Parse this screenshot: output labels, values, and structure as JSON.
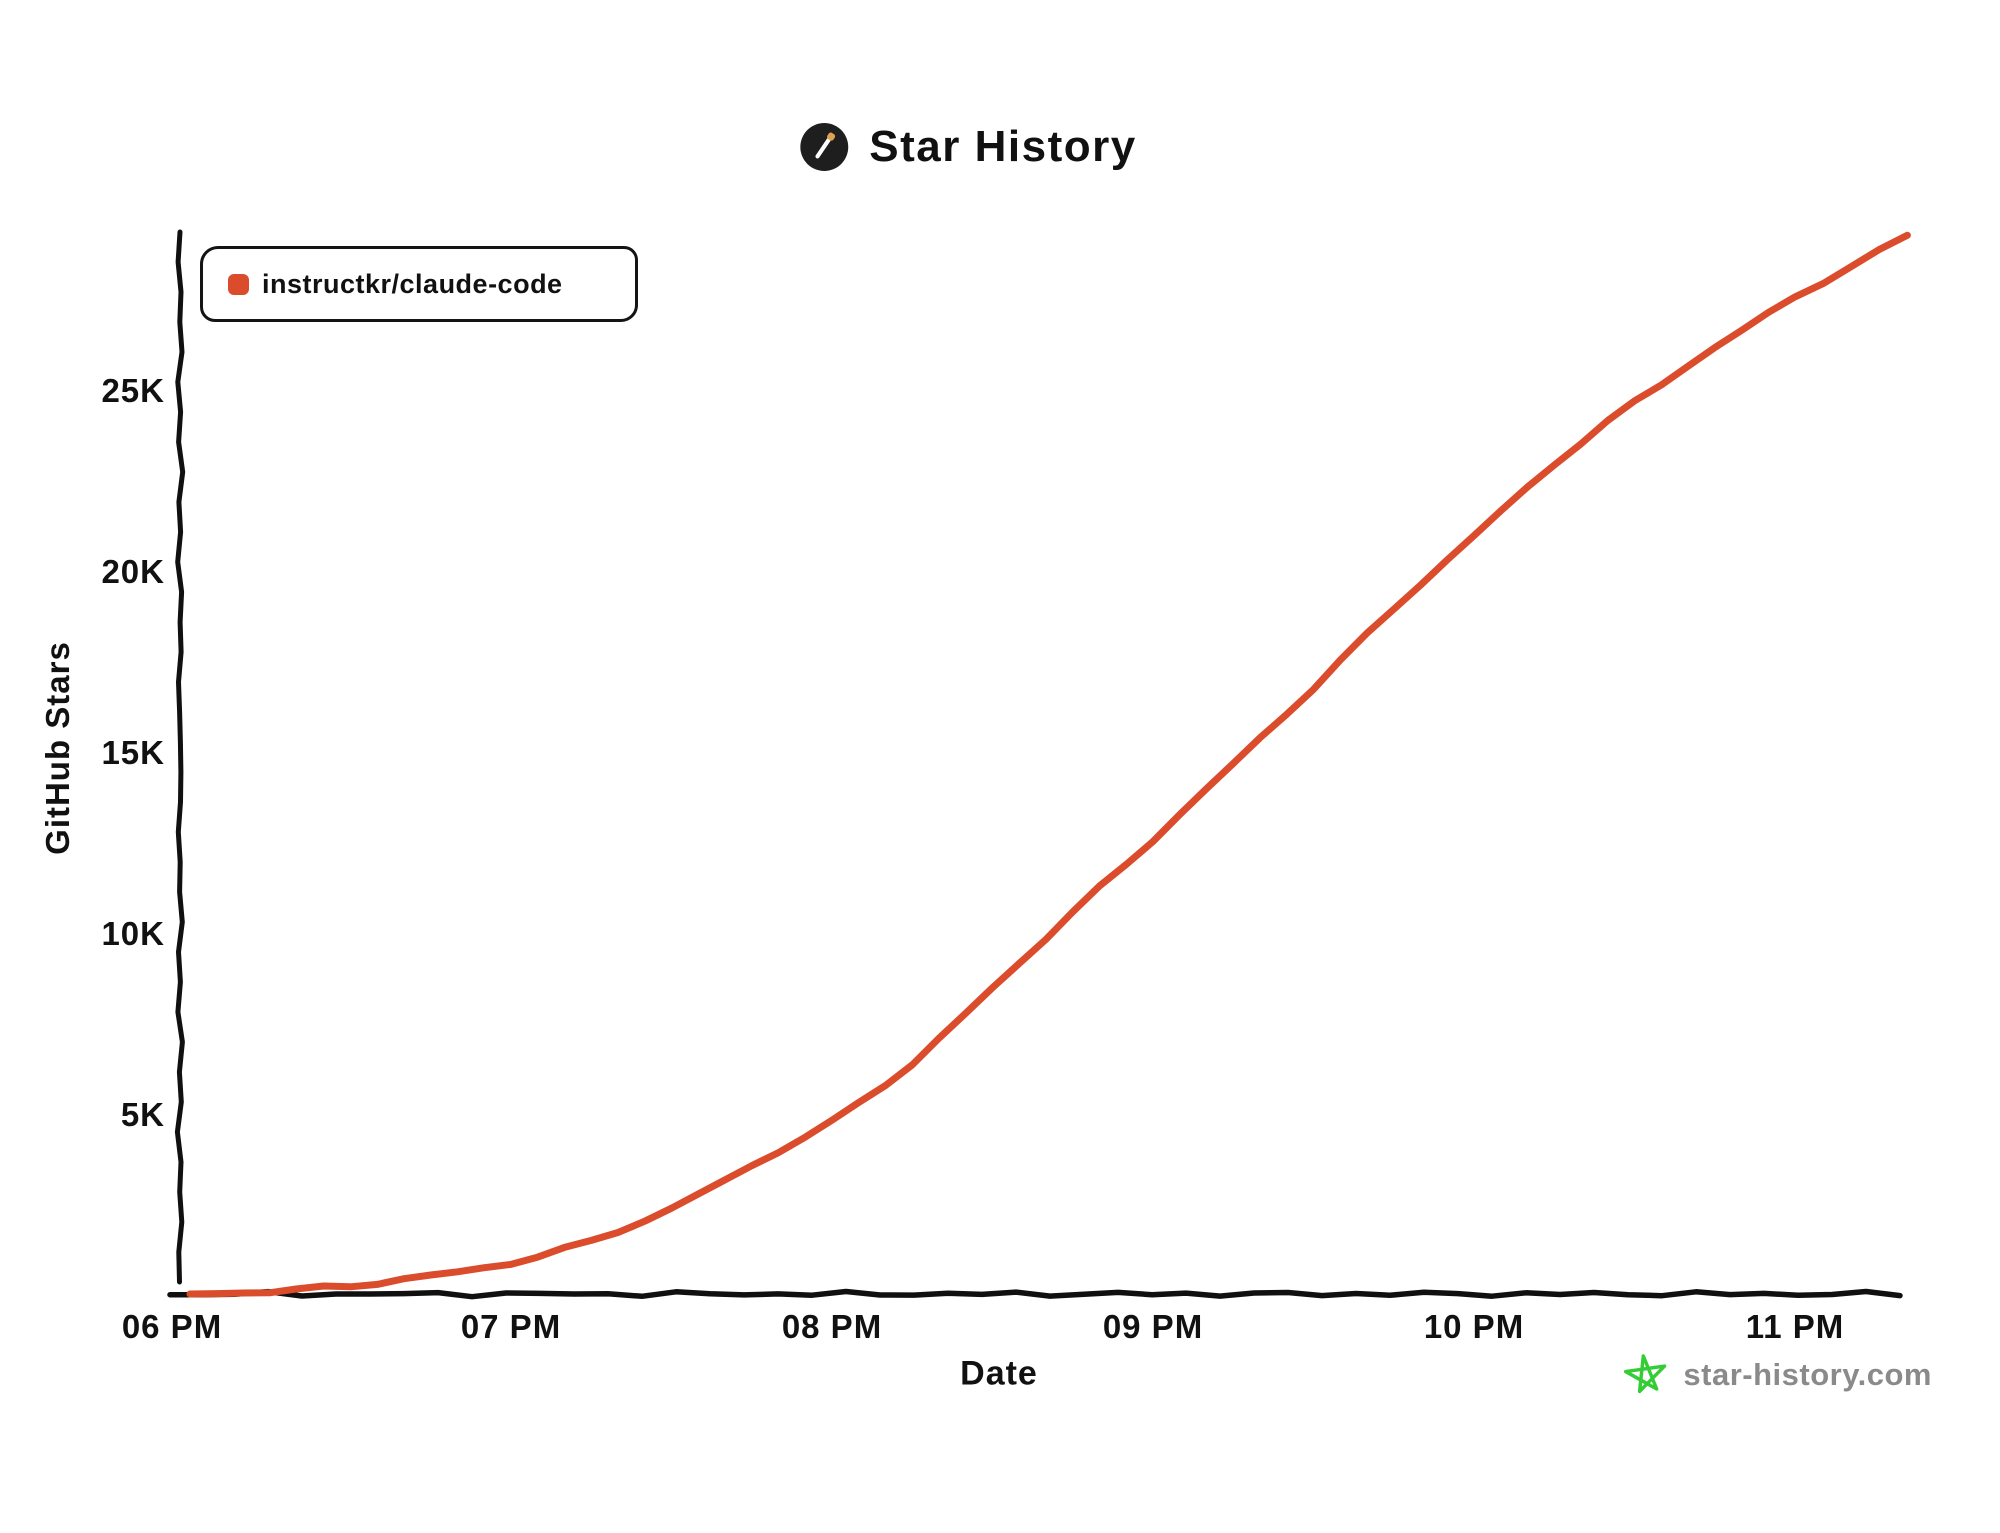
{
  "header": {
    "title": "Star History"
  },
  "legend": {
    "series_label": "instructkr/claude-code"
  },
  "axes": {
    "y_label": "GitHub Stars",
    "x_label": "Date",
    "y_ticks": [
      "5K",
      "10K",
      "15K",
      "20K",
      "25K"
    ],
    "x_ticks": [
      "06 PM",
      "07 PM",
      "08 PM",
      "09 PM",
      "10 PM",
      "11 PM"
    ]
  },
  "watermark": {
    "text": "star-history.com"
  },
  "colors": {
    "series": "#DB4C2C",
    "axis": "#101010",
    "text": "#111111",
    "watermark_text": "#8A8A8A",
    "watermark_star": "#35CD35",
    "icon_circle": "#1E1E1E",
    "icon_wand": "#FFFFFF",
    "icon_tip": "#DFA04F"
  },
  "chart_data": {
    "type": "line",
    "title": "Star History",
    "xlabel": "Date",
    "ylabel": "GitHub Stars",
    "grid": false,
    "legend_position": "top-left",
    "x_tick_labels": [
      "06 PM",
      "07 PM",
      "08 PM",
      "09 PM",
      "10 PM",
      "11 PM"
    ],
    "y_tick_values": [
      5000,
      10000,
      15000,
      20000,
      25000
    ],
    "ylim": [
      0,
      29500
    ],
    "series": [
      {
        "name": "instructkr/claude-code",
        "color": "#DB4C2C",
        "points": [
          {
            "time": "06:00 PM",
            "hour": 18.0,
            "stars": 50
          },
          {
            "time": "06:15 PM",
            "hour": 18.25,
            "stars": 120
          },
          {
            "time": "06:30 PM",
            "hour": 18.5,
            "stars": 280
          },
          {
            "time": "06:45 PM",
            "hour": 18.75,
            "stars": 550
          },
          {
            "time": "07:00 PM",
            "hour": 19.0,
            "stars": 900
          },
          {
            "time": "07:15 PM",
            "hour": 19.25,
            "stars": 1500
          },
          {
            "time": "07:30 PM",
            "hour": 19.5,
            "stars": 2400
          },
          {
            "time": "07:45 PM",
            "hour": 19.75,
            "stars": 3600
          },
          {
            "time": "08:00 PM",
            "hour": 20.0,
            "stars": 4800
          },
          {
            "time": "08:15 PM",
            "hour": 20.25,
            "stars": 6400
          },
          {
            "time": "08:30 PM",
            "hour": 20.5,
            "stars": 8500
          },
          {
            "time": "08:45 PM",
            "hour": 20.75,
            "stars": 10600
          },
          {
            "time": "09:00 PM",
            "hour": 21.0,
            "stars": 12600
          },
          {
            "time": "09:15 PM",
            "hour": 21.25,
            "stars": 14700
          },
          {
            "time": "09:30 PM",
            "hour": 21.5,
            "stars": 16800
          },
          {
            "time": "09:45 PM",
            "hour": 21.75,
            "stars": 19000
          },
          {
            "time": "10:00 PM",
            "hour": 22.0,
            "stars": 21000
          },
          {
            "time": "10:15 PM",
            "hour": 22.25,
            "stars": 23000
          },
          {
            "time": "10:30 PM",
            "hour": 22.5,
            "stars": 24700
          },
          {
            "time": "10:45 PM",
            "hour": 22.75,
            "stars": 26200
          },
          {
            "time": "11:00 PM",
            "hour": 23.0,
            "stars": 27600
          },
          {
            "time": "11:21 PM",
            "hour": 23.35,
            "stars": 29300
          }
        ]
      }
    ]
  }
}
